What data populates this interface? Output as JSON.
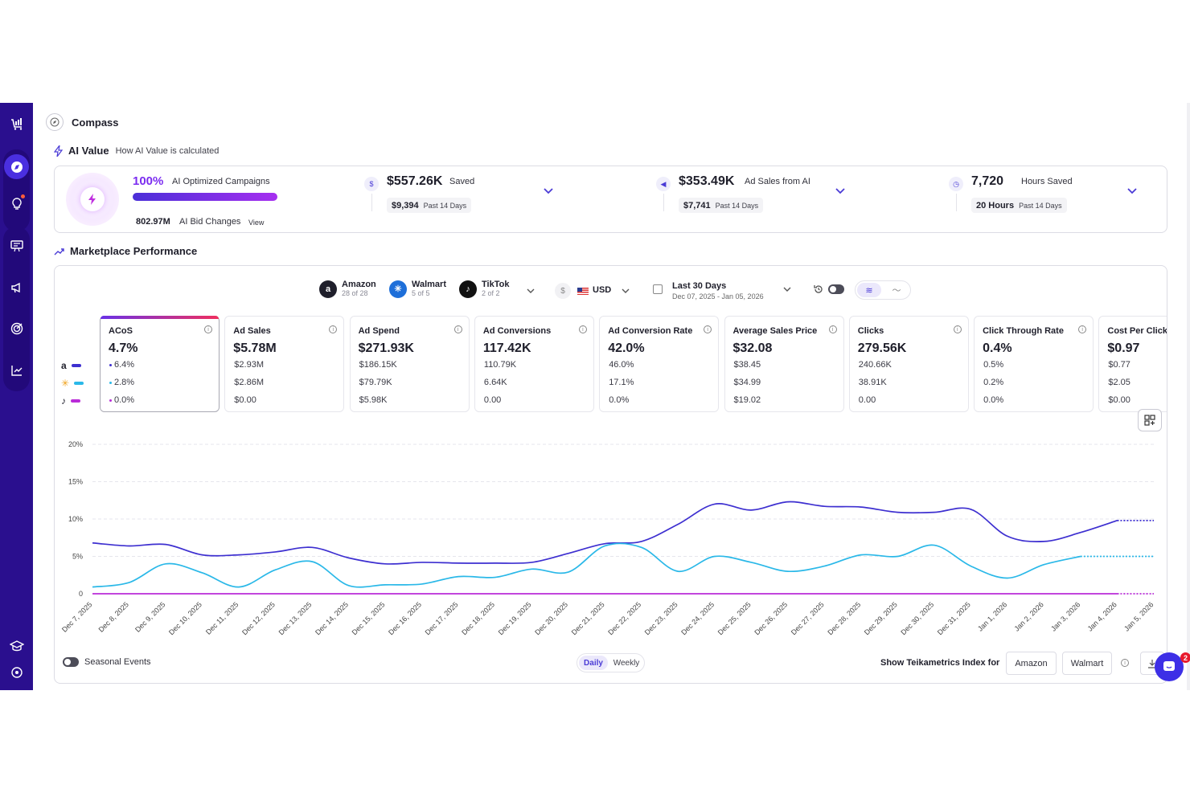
{
  "header": {
    "title": "Compass"
  },
  "ai_value": {
    "title": "AI Value",
    "how_link": "How AI Value is calculated",
    "optimized_pct": "100%",
    "optimized_label": "AI Optimized Campaigns",
    "optimized_fraction": 1.0,
    "bid_changes_value": "802.97M",
    "bid_changes_label": "AI Bid Changes",
    "bid_changes_view": "View",
    "metrics": [
      {
        "value": "$557.26K",
        "label": "Saved",
        "sub_value": "$9,394",
        "sub_label": "Past 14 Days",
        "icon": "money-bag-icon"
      },
      {
        "value": "$353.49K",
        "label": "Ad Sales from AI",
        "sub_value": "$7,741",
        "sub_label": "Past 14 Days",
        "icon": "megaphone-icon"
      },
      {
        "value": "7,720",
        "label": "Hours Saved",
        "sub_value": "20 Hours",
        "sub_label": "Past 14 Days",
        "icon": "clock-icon"
      }
    ]
  },
  "marketplace": {
    "title": "Marketplace Performance",
    "filters": {
      "markets": [
        {
          "name": "Amazon",
          "sub": "28 of 28",
          "logo": "a",
          "color": "#1f1f2b"
        },
        {
          "name": "Walmart",
          "sub": "5 of 5",
          "logo": "✳",
          "color": "#1e6fd9"
        },
        {
          "name": "TikTok",
          "sub": "2 of 2",
          "logo": "♪",
          "color": "#111111"
        }
      ],
      "currency_symbol": "$",
      "currency": "USD",
      "date_title": "Last 30 Days",
      "date_range": "Dec 07, 2025 - Jan 05, 2026"
    },
    "legend": [
      {
        "icon": "amazon-icon",
        "glyph": "a",
        "color": "#3d2fd0"
      },
      {
        "icon": "walmart-icon",
        "glyph": "✳",
        "color": "#2ab8e8"
      },
      {
        "icon": "tiktok-icon",
        "glyph": "♪",
        "color": "#b92bd8"
      }
    ],
    "cards": [
      {
        "label": "ACoS",
        "value": "4.7%",
        "subs": [
          "6.4%",
          "2.8%",
          "0.0%"
        ]
      },
      {
        "label": "Ad Sales",
        "value": "$5.78M",
        "subs": [
          "$2.93M",
          "$2.86M",
          "$0.00"
        ]
      },
      {
        "label": "Ad Spend",
        "value": "$271.93K",
        "subs": [
          "$186.15K",
          "$79.79K",
          "$5.98K"
        ]
      },
      {
        "label": "Ad Conversions",
        "value": "117.42K",
        "subs": [
          "110.79K",
          "6.64K",
          "0.00"
        ]
      },
      {
        "label": "Ad Conversion Rate",
        "value": "42.0%",
        "subs": [
          "46.0%",
          "17.1%",
          "0.0%"
        ]
      },
      {
        "label": "Average Sales Price",
        "value": "$32.08",
        "subs": [
          "$38.45",
          "$34.99",
          "$19.02"
        ]
      },
      {
        "label": "Clicks",
        "value": "279.56K",
        "subs": [
          "240.66K",
          "38.91K",
          "0.00"
        ]
      },
      {
        "label": "Click Through Rate",
        "value": "0.4%",
        "subs": [
          "0.5%",
          "0.2%",
          "0.0%"
        ]
      },
      {
        "label": "Cost Per Click",
        "value": "$0.97",
        "subs": [
          "$0.77",
          "$2.05",
          "$0.00"
        ]
      }
    ],
    "seasonal_label": "Seasonal Events",
    "period": {
      "daily": "Daily",
      "weekly": "Weekly"
    },
    "teika_label": "Show Teikametrics Index for",
    "teika_amazon": "Amazon",
    "teika_walmart": "Walmart"
  },
  "chat": {
    "badge": "2"
  },
  "chart_data": {
    "type": "line",
    "x": [
      "Dec 7, 2025",
      "Dec 8, 2025",
      "Dec 9, 2025",
      "Dec 10, 2025",
      "Dec 11, 2025",
      "Dec 12, 2025",
      "Dec 13, 2025",
      "Dec 14, 2025",
      "Dec 15, 2025",
      "Dec 16, 2025",
      "Dec 17, 2025",
      "Dec 18, 2025",
      "Dec 19, 2025",
      "Dec 20, 2025",
      "Dec 21, 2025",
      "Dec 22, 2025",
      "Dec 23, 2025",
      "Dec 24, 2025",
      "Dec 25, 2025",
      "Dec 26, 2025",
      "Dec 27, 2025",
      "Dec 28, 2025",
      "Dec 29, 2025",
      "Dec 30, 2025",
      "Dec 31, 2025",
      "Jan 1, 2026",
      "Jan 2, 2026",
      "Jan 3, 2026",
      "Jan 4, 2026",
      "Jan 5, 2026"
    ],
    "yticks": [
      "0",
      "5%",
      "10%",
      "15%",
      "20%"
    ],
    "ylim": [
      0,
      20
    ],
    "grid": true,
    "series": [
      {
        "values": [
          6.8,
          6.4,
          6.6,
          5.2,
          5.2,
          5.6,
          6.2,
          4.8,
          4.0,
          4.2,
          4.1,
          4.1,
          4.2,
          5.4,
          6.7,
          7.0,
          9.3,
          12.0,
          11.2,
          12.3,
          11.7,
          11.6,
          10.9,
          10.9,
          11.3,
          7.7,
          7.0,
          8.2,
          9.8,
          9.8
        ],
        "color": "#3d2fd0"
      },
      {
        "values": [
          0.9,
          1.5,
          4.0,
          2.8,
          0.9,
          3.2,
          4.3,
          1.1,
          1.2,
          1.3,
          2.3,
          2.2,
          3.3,
          2.9,
          6.4,
          6.2,
          3.0,
          5.0,
          4.2,
          3.0,
          3.7,
          5.2,
          5.0,
          6.5,
          3.7,
          2.1,
          3.9,
          5.0,
          5.0,
          5.0
        ],
        "color": "#2ab8e8"
      },
      {
        "values": [
          0,
          0,
          0,
          0,
          0,
          0,
          0,
          0,
          0,
          0,
          0,
          0,
          0,
          0,
          0,
          0,
          0,
          0,
          0,
          0,
          0,
          0,
          0,
          0,
          0,
          0,
          0,
          0,
          0,
          0
        ],
        "color": "#b92bd8"
      }
    ]
  }
}
